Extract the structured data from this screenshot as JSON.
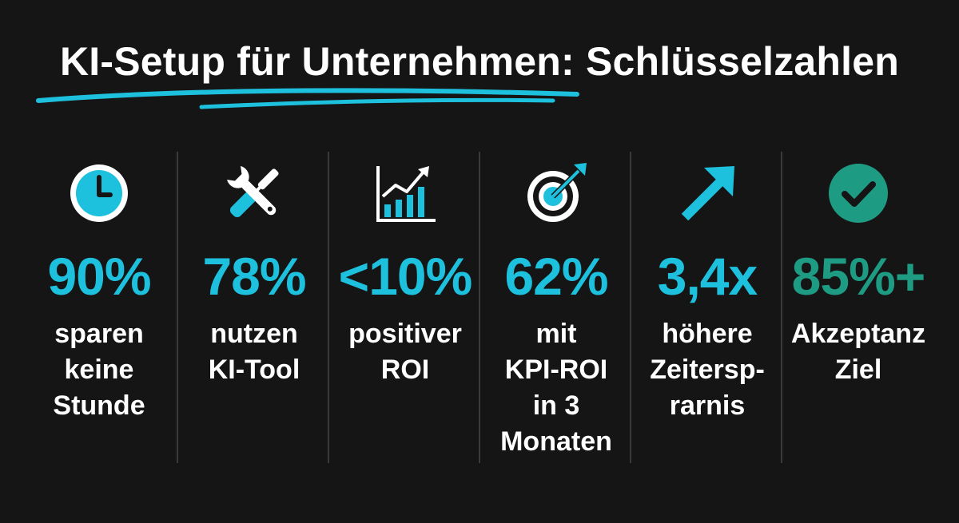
{
  "title": "KI-Setup für Unternehmen: Schlüsselzahlen",
  "colors": {
    "background": "#151515",
    "accent_blue": "#1ec1dd",
    "accent_green": "#1e9b83",
    "text": "#ffffff"
  },
  "stats": [
    {
      "icon": "clock-icon",
      "value": "90%",
      "label_lines": [
        "sparen",
        "keine",
        "Stunde"
      ]
    },
    {
      "icon": "tools-icon",
      "value": "78%",
      "label_lines": [
        "nutzen",
        "KI-Tool"
      ]
    },
    {
      "icon": "bar-chart-icon",
      "value": "<10%",
      "label_lines": [
        "positiver",
        "ROI"
      ]
    },
    {
      "icon": "target-icon",
      "value": "62%",
      "label_lines": [
        "mit",
        "KPI-ROI",
        "in 3",
        "Monaten"
      ]
    },
    {
      "icon": "arrow-up-right-icon",
      "value": "3,4x",
      "label_lines": [
        "höhere",
        "Zeitersp-",
        "rarnis"
      ]
    },
    {
      "icon": "check-circle-icon",
      "value": "85%+",
      "label_lines": [
        "Akzeptanz",
        "Ziel"
      ]
    }
  ]
}
